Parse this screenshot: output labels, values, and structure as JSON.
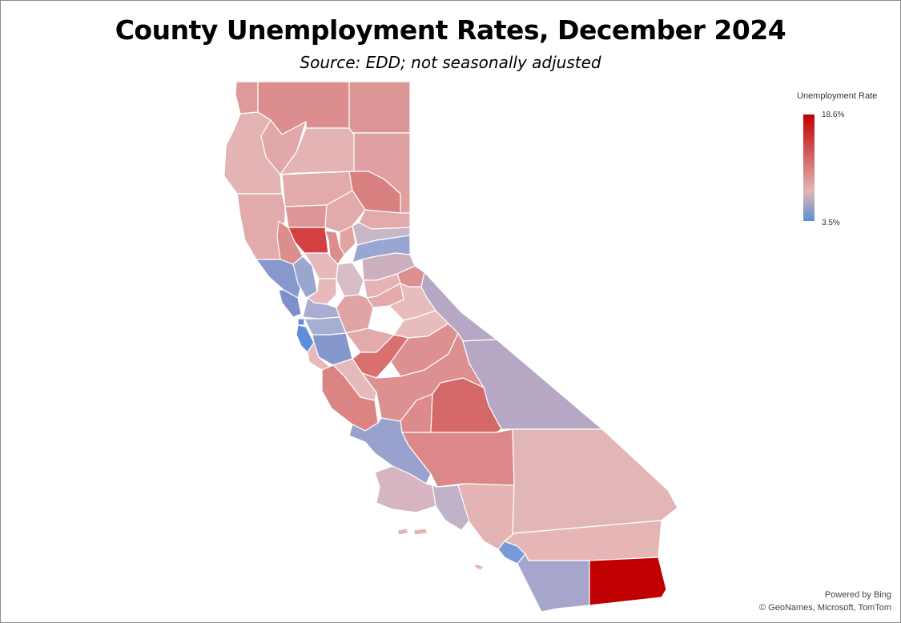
{
  "title": "County Unemployment Rates, December 2024",
  "subtitle": "Source:  EDD; not seasonally adjusted",
  "legend": {
    "title": "Unemployment Rate",
    "max_label": "18.6%",
    "min_label": "3.5%",
    "color_high": "#c00000",
    "color_mid": "#e2b6b6",
    "color_low": "#5b8fd6"
  },
  "attribution": {
    "powered": "Powered by Bing",
    "copyright": "© GeoNames, Microsoft, TomTom"
  },
  "colors": {
    "border": "#ffffff"
  }
}
